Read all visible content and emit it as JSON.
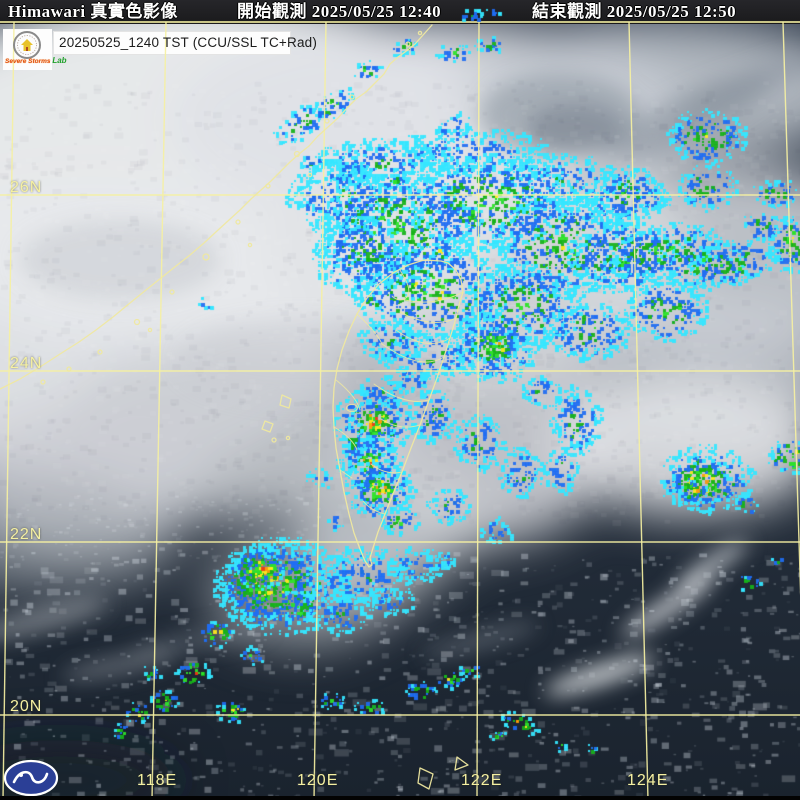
{
  "header": {
    "product": "Himawari 真實色影像",
    "start": "開始觀測 2025/05/25 12:40",
    "end": "結束觀測 2025/05/25 12:50"
  },
  "info_box": {
    "text": "20250525_1240 TST (CCU/SSL TC+Rad)",
    "lab_name": "Severe Storms",
    "lab_suffix": "Lab"
  },
  "map": {
    "lat_labels": [
      "26N",
      "24N",
      "22N",
      "20N"
    ],
    "lon_labels": [
      "118E",
      "120E",
      "122E",
      "124E"
    ]
  },
  "colors": {
    "grid": "#f5f0a2",
    "coast": "#efe8a0",
    "radar_levels": [
      "#35e6ff",
      "#1f6df2",
      "#17b21a",
      "#2ee32a",
      "#ffe81f",
      "#ff9c0a",
      "#f23a14"
    ],
    "logo_blue": "#2b3f96"
  }
}
